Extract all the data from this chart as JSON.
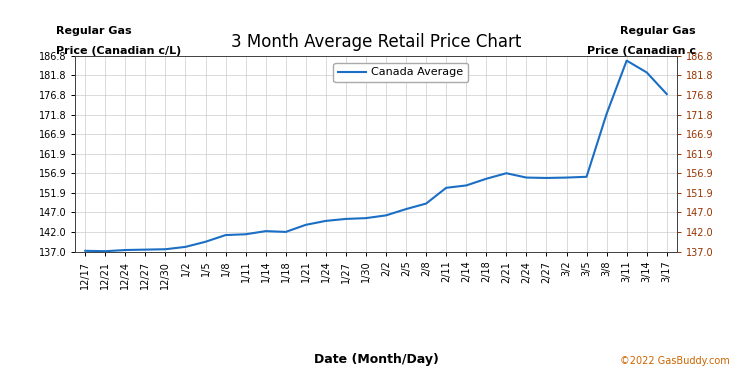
{
  "title": "3 Month Average Retail Price Chart",
  "ylabel_left_line1": "Regular Gas",
  "ylabel_left_line2": "Price (Canadian c/L)",
  "ylabel_right_line1": "Regular Gas",
  "ylabel_right_line2": "Price (Canadian c",
  "xlabel": "Date (Month/Day)",
  "copyright": "©2022 GasBuddy.com",
  "legend_label": "Canada Average",
  "line_color": "#1a6fc4",
  "right_tick_color": "#993300",
  "ylim": [
    137.0,
    186.8
  ],
  "yticks": [
    137.0,
    142.0,
    147.0,
    151.9,
    156.9,
    161.9,
    166.9,
    171.8,
    176.8,
    181.8,
    186.8
  ],
  "dates": [
    "12/17",
    "12/21",
    "12/24",
    "12/27",
    "12/30",
    "1/2",
    "1/5",
    "1/8",
    "1/11",
    "1/14",
    "1/18",
    "1/21",
    "1/24",
    "1/27",
    "1/30",
    "2/2",
    "2/5",
    "2/8",
    "2/11",
    "2/14",
    "2/18",
    "2/21",
    "2/24",
    "2/27",
    "3/2",
    "3/5",
    "3/8",
    "3/11",
    "3/14",
    "3/17"
  ],
  "values": [
    137.2,
    137.1,
    137.4,
    137.5,
    137.6,
    138.2,
    139.5,
    141.2,
    141.4,
    142.2,
    142.0,
    143.8,
    144.8,
    145.3,
    145.5,
    146.2,
    147.8,
    149.2,
    153.2,
    153.8,
    155.5,
    156.9,
    155.8,
    155.7,
    155.8,
    156.0,
    172.0,
    185.5,
    182.5,
    177.0
  ],
  "year_label_2021_idx": 2,
  "year_label_2022_idx": 15,
  "background_color": "#ffffff",
  "grid_color": "#cccccc",
  "title_fontsize": 12,
  "tick_label_fontsize": 7,
  "axis_label_fontsize": 8,
  "legend_fontsize": 8
}
